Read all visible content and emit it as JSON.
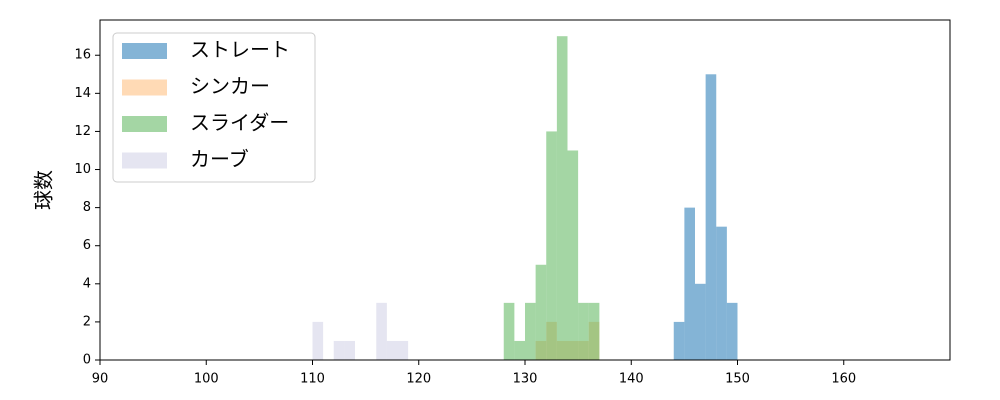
{
  "chart_data": {
    "type": "histogram",
    "y_label": "球数",
    "xlim": [
      90,
      170
    ],
    "xticks": [
      90,
      100,
      110,
      120,
      130,
      140,
      150,
      160
    ],
    "ylim": [
      0,
      17.85
    ],
    "yticks": [
      0,
      2,
      4,
      6,
      8,
      10,
      12,
      14,
      16
    ],
    "alpha": 0.55,
    "legend": "upper left",
    "series": [
      {
        "name": "ストレート",
        "color": "#1f77b4",
        "bins": [
          144,
          145,
          146,
          147,
          148,
          149,
          150
        ],
        "values": [
          2,
          8,
          4,
          15,
          7,
          3
        ]
      },
      {
        "name": "シンカー",
        "color": "#ffbb78",
        "bins": [
          131,
          132,
          133,
          134,
          135,
          136,
          137
        ],
        "values": [
          1,
          2,
          1,
          1,
          1,
          2
        ]
      },
      {
        "name": "スライダー",
        "color": "#5ab45a",
        "bins": [
          128,
          129,
          130,
          131,
          132,
          133,
          134,
          135,
          136,
          137
        ],
        "values": [
          3,
          1,
          3,
          5,
          12,
          17,
          11,
          3,
          3
        ]
      },
      {
        "name": "カーブ",
        "color": "#d0d0e6",
        "bins": [
          110,
          111,
          112,
          113,
          114,
          115,
          116,
          117,
          118,
          119
        ],
        "values": [
          2,
          0,
          1,
          1,
          0,
          0,
          3,
          1,
          1
        ]
      }
    ]
  }
}
